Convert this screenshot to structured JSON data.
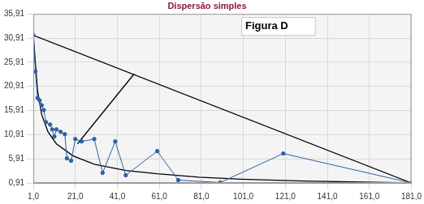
{
  "chart_data": {
    "type": "scatter",
    "title": "Dispersão simples",
    "annotations": [
      "Figura D"
    ],
    "grid": true,
    "xlim": [
      1,
      181
    ],
    "xticks": [
      {
        "value": 1,
        "label": "1,0"
      },
      {
        "value": 21,
        "label": "21,0"
      },
      {
        "value": 41,
        "label": "41,0"
      },
      {
        "value": 61,
        "label": "61,0"
      },
      {
        "value": 81,
        "label": "81,0"
      },
      {
        "value": 101,
        "label": "101,0"
      },
      {
        "value": 121,
        "label": "121,0"
      },
      {
        "value": 141,
        "label": "141,0"
      },
      {
        "value": 161,
        "label": "161,0"
      },
      {
        "value": 181,
        "label": "181,0"
      }
    ],
    "ylim": [
      0.91,
      35.91
    ],
    "yticks": [
      {
        "value": 0.91,
        "label": "0,91"
      },
      {
        "value": 5.91,
        "label": "5,91"
      },
      {
        "value": 10.91,
        "label": "10,91"
      },
      {
        "value": 15.91,
        "label": "15,91"
      },
      {
        "value": 20.91,
        "label": "20,91"
      },
      {
        "value": 25.91,
        "label": "25,91"
      },
      {
        "value": 30.91,
        "label": "30,91"
      },
      {
        "value": 35.91,
        "label": "35,91"
      }
    ],
    "series": [
      {
        "color": "#2e5fa8",
        "marker": "circle",
        "line_style": "solid",
        "x": [
          1,
          2,
          3,
          4,
          5,
          6,
          7,
          9,
          10,
          11,
          12,
          14,
          16,
          17,
          19,
          21,
          24,
          30,
          34,
          40,
          45,
          60,
          70,
          90,
          120,
          181
        ],
        "values": [
          31.5,
          24,
          18.5,
          18,
          17,
          16,
          13.5,
          13,
          12,
          10.5,
          12,
          11.5,
          11,
          6,
          5.5,
          10,
          9.5,
          10,
          3,
          9.5,
          2.5,
          7.5,
          1.5,
          1,
          7,
          0.91
        ]
      },
      {
        "color": "#000000",
        "marker": "none",
        "line_style": "solid",
        "x": [
          1,
          3,
          5,
          8,
          12,
          20,
          30,
          45,
          60,
          80,
          100,
          130,
          181
        ],
        "values": [
          31.5,
          20,
          15,
          11.5,
          9,
          6.5,
          4.8,
          3.5,
          2.8,
          2.1,
          1.7,
          1.3,
          0.91
        ]
      },
      {
        "color": "#000000",
        "marker": "none",
        "line_style": "solid",
        "x": [
          1,
          181
        ],
        "values": [
          31.5,
          0.91
        ]
      },
      {
        "color": "#000000",
        "marker": "none",
        "line_style": "solid",
        "x": [
          22,
          49
        ],
        "values": [
          9,
          23.5
        ]
      }
    ]
  }
}
